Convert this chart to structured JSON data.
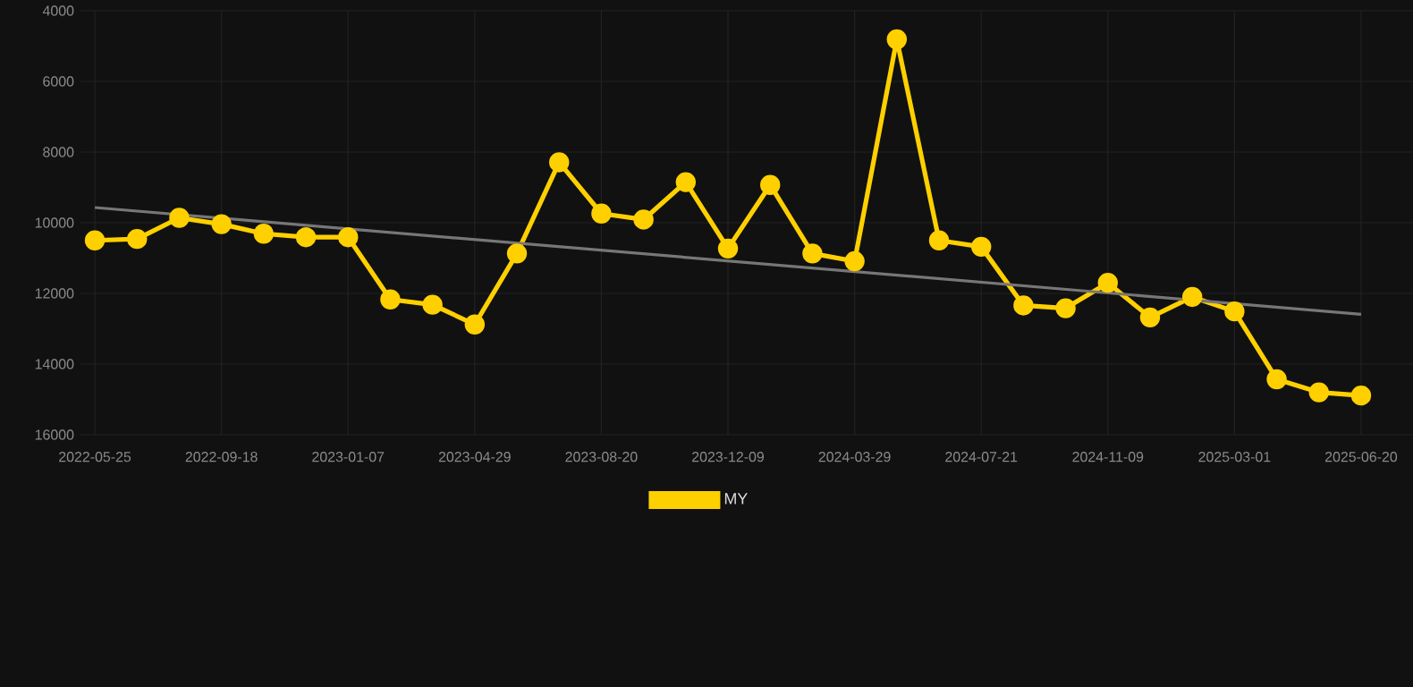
{
  "chart_data": {
    "type": "line",
    "categories": [
      "2022-05-25",
      null,
      null,
      "2022-09-18",
      null,
      null,
      "2023-01-07",
      null,
      null,
      "2023-04-29",
      null,
      null,
      "2023-08-20",
      null,
      null,
      "2023-12-09",
      null,
      null,
      "2024-03-29",
      null,
      null,
      "2024-07-21",
      null,
      null,
      "2024-11-09",
      null,
      null,
      "2025-03-01",
      null,
      null,
      "2025-06-20"
    ],
    "series": [
      {
        "name": "MY",
        "color": "#ffd000",
        "marker": "circle",
        "values": [
          10500,
          10460,
          9860,
          10040,
          10310,
          10410,
          10410,
          12170,
          12320,
          12880,
          10870,
          8290,
          9740,
          9910,
          8850,
          10730,
          8930,
          10870,
          11090,
          4810,
          10500,
          10680,
          12340,
          12420,
          11700,
          12680,
          12100,
          12510,
          14430,
          14800,
          14890
        ]
      },
      {
        "type": "line",
        "color": "#777777",
        "marker": "none",
        "values": [
          9570,
          null,
          null,
          null,
          null,
          null,
          null,
          null,
          null,
          null,
          null,
          null,
          null,
          null,
          null,
          null,
          null,
          null,
          null,
          null,
          null,
          null,
          null,
          null,
          null,
          null,
          null,
          null,
          null,
          null,
          12590
        ]
      }
    ],
    "ylim": [
      16000,
      4000
    ],
    "yticks": [
      4000,
      6000,
      8000,
      10000,
      12000,
      14000,
      16000
    ],
    "grid": true,
    "legend": "bottom"
  }
}
